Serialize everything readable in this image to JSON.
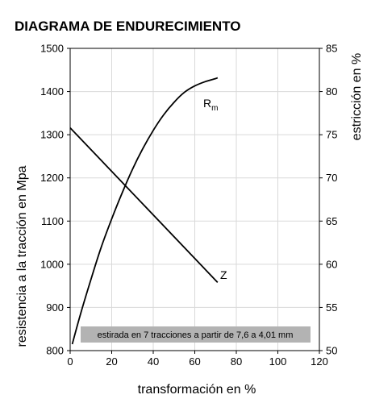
{
  "chart_data": {
    "type": "line",
    "title": "DIAGRAMA DE ENDURECIMIENTO",
    "xlabel": "transformación en %",
    "ylabel_left": "resistencia a la tracción en Mpa",
    "ylabel_right": "estricción en %",
    "xlim": [
      0,
      120
    ],
    "ylim_left": [
      800,
      1500
    ],
    "ylim_right": [
      50,
      85
    ],
    "x_ticks": [
      "0",
      "20",
      "40",
      "60",
      "80",
      "100",
      "120"
    ],
    "y_ticks_left": [
      "800",
      "900",
      "1000",
      "1100",
      "1200",
      "1300",
      "1400",
      "1500"
    ],
    "y_ticks_right": [
      "50",
      "55",
      "60",
      "65",
      "70",
      "75",
      "80",
      "85"
    ],
    "grid": true,
    "series": [
      {
        "name": "Rm",
        "axis": "left",
        "x": [
          1,
          5,
          10,
          15,
          20,
          25,
          30,
          35,
          40,
          45,
          50,
          55,
          60,
          65,
          70,
          71
        ],
        "y": [
          815,
          885,
          965,
          1040,
          1105,
          1165,
          1220,
          1268,
          1310,
          1346,
          1375,
          1398,
          1413,
          1423,
          1430,
          1432
        ]
      },
      {
        "name": "Z",
        "axis": "right",
        "x": [
          0,
          71
        ],
        "y": [
          75.8,
          57.9
        ]
      }
    ],
    "series_labels": {
      "Rm_main": "R",
      "Rm_sub": "m",
      "Z": "Z"
    },
    "annotation": "estirada en 7 tracciones a partir de 7,6 a 4,01 mm",
    "colors": {
      "line": "#000000",
      "grid": "#d9d9d9",
      "frame": "#000000",
      "annotation_bg": "#b3b3b3"
    }
  }
}
